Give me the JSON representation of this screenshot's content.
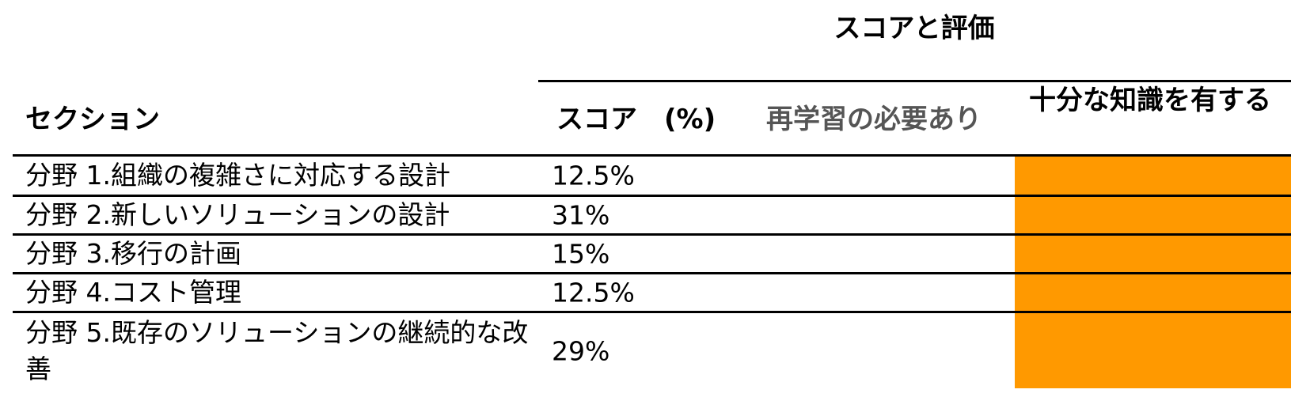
{
  "header": {
    "group_title": "スコアと評価",
    "section_label": "セクション",
    "score_label": "スコア　(%)",
    "relearn_label": "再学習の必要あり",
    "sufficient_label": "十分な知識を有する"
  },
  "colors": {
    "indicator": "#FF9900",
    "relearn_header_text": "#555555"
  },
  "rows": [
    {
      "section": "分野 1.組織の複雑さに対応する設計",
      "score": "12.5%",
      "rating": "sufficient"
    },
    {
      "section": "分野 2.新しいソリューションの設計",
      "score": "31%",
      "rating": "sufficient"
    },
    {
      "section": "分野 3.移行の計画",
      "score": "15%",
      "rating": "sufficient"
    },
    {
      "section": "分野 4.コスト管理",
      "score": "12.5%",
      "rating": "sufficient"
    },
    {
      "section": "分野 5.既存のソリューションの継続的な改善",
      "score": "29%",
      "rating": "sufficient"
    }
  ]
}
